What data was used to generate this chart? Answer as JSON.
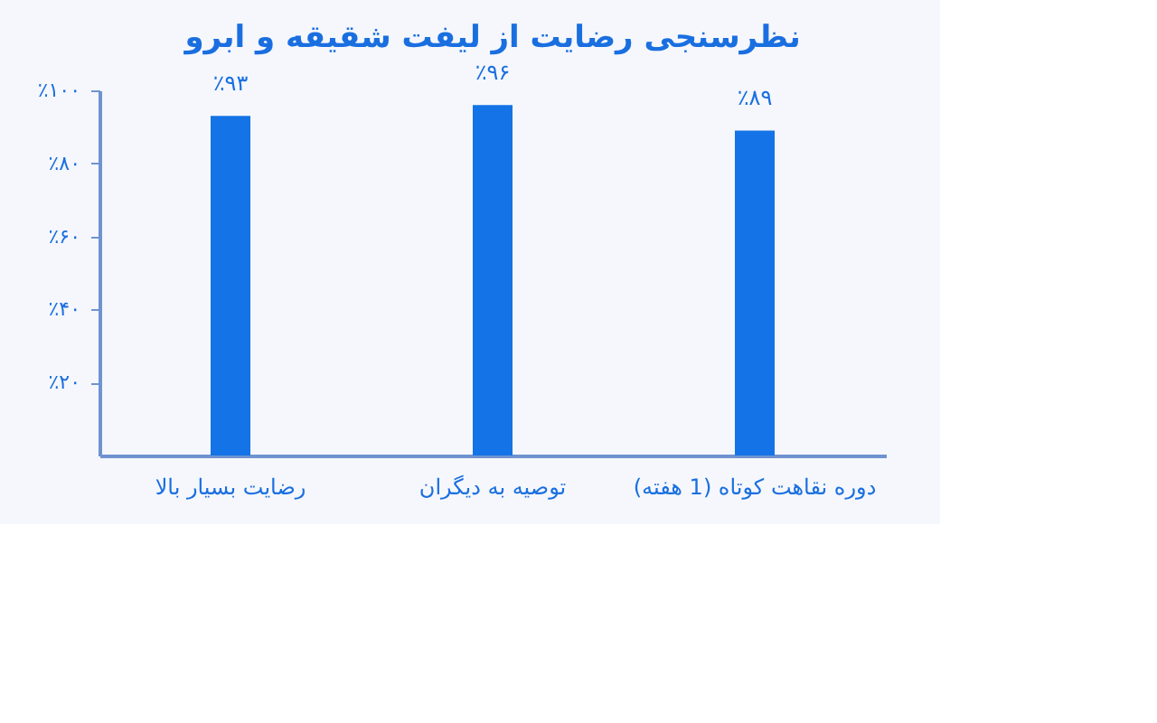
{
  "chart_data": {
    "type": "bar",
    "title": "نظرسنجی رضایت از لیفت شقیقه و ابرو",
    "categories": [
      "رضایت بسیار بالا",
      "توصیه به دیگران",
      "دوره نقاهت کوتاه (1 هفته)"
    ],
    "values": [
      93,
      96,
      89
    ],
    "value_labels": [
      "٪۹۳",
      "٪۹۶",
      "٪۸۹"
    ],
    "color": "#1473e6",
    "ylim": [
      0,
      100
    ],
    "yticks": [
      {
        "value": 20,
        "label": "٪۲۰"
      },
      {
        "value": 40,
        "label": "٪۴۰"
      },
      {
        "value": 60,
        "label": "٪۶۰"
      },
      {
        "value": 80,
        "label": "٪۸۰"
      },
      {
        "value": 100,
        "label": "٪۱۰۰"
      }
    ],
    "grid": false
  }
}
